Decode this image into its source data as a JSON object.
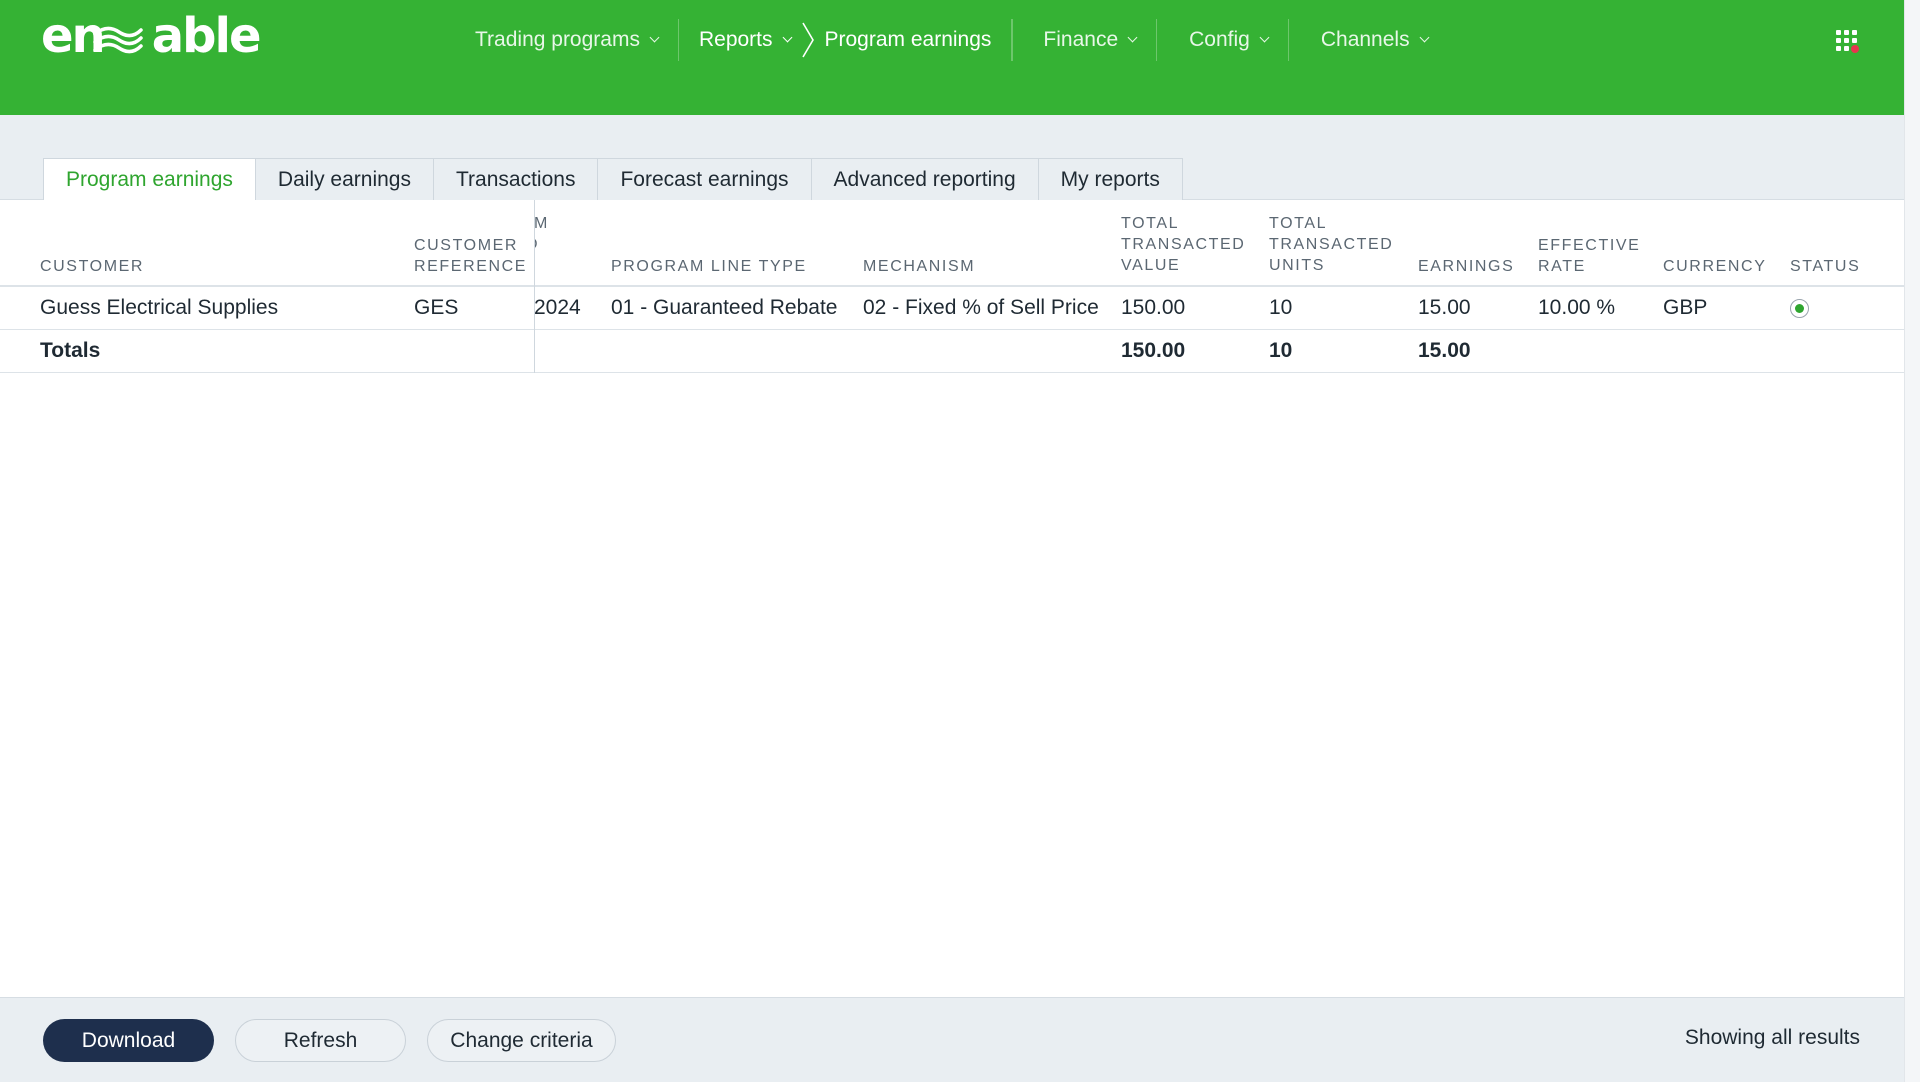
{
  "app": {
    "logo_text": "enable",
    "brand_color": "#35b234"
  },
  "nav": {
    "items": [
      {
        "label": "Trading programs"
      },
      {
        "label": "Reports"
      },
      {
        "label": "Program earnings"
      },
      {
        "label": "Finance"
      },
      {
        "label": "Config"
      },
      {
        "label": "Channels"
      }
    ],
    "apps_icon": "grid-apps-icon"
  },
  "tabs": [
    {
      "label": "Program earnings",
      "active": true
    },
    {
      "label": "Daily earnings"
    },
    {
      "label": "Transactions"
    },
    {
      "label": "Forecast earnings"
    },
    {
      "label": "Advanced reporting"
    },
    {
      "label": "My reports"
    }
  ],
  "table": {
    "headers": {
      "customer": "CUSTOMER",
      "customer_ref_1": "CUSTOMER",
      "customer_ref_2": "REFERENCE",
      "clipped_1": "M",
      "clipped_2": "D",
      "program_line_type": "PROGRAM LINE TYPE",
      "mechanism": "MECHANISM",
      "ttv_1": "TOTAL",
      "ttv_2": "TRANSACTED",
      "ttv_3": "VALUE",
      "ttu_1": "TOTAL",
      "ttu_2": "TRANSACTED",
      "ttu_3": "UNITS",
      "earnings": "EARNINGS",
      "rate_1": "EFFECTIVE",
      "rate_2": "RATE",
      "currency": "CURRENCY",
      "status": "STATUS"
    },
    "rows": [
      {
        "customer": "Guess Electrical Supplies",
        "customer_reference": "GES",
        "period": "2024",
        "program_line_type": "01 - Guaranteed Rebate",
        "mechanism": "02 - Fixed % of Sell Price",
        "total_transacted_value": "150.00",
        "total_transacted_units": "10",
        "earnings": "15.00",
        "effective_rate": "10.00 %",
        "currency": "GBP",
        "status": "active"
      }
    ],
    "totals": {
      "label": "Totals",
      "total_transacted_value": "150.00",
      "total_transacted_units": "10",
      "earnings": "15.00"
    }
  },
  "footer": {
    "download_label": "Download",
    "refresh_label": "Refresh",
    "change_criteria_label": "Change criteria",
    "results_text": "Showing all results"
  }
}
